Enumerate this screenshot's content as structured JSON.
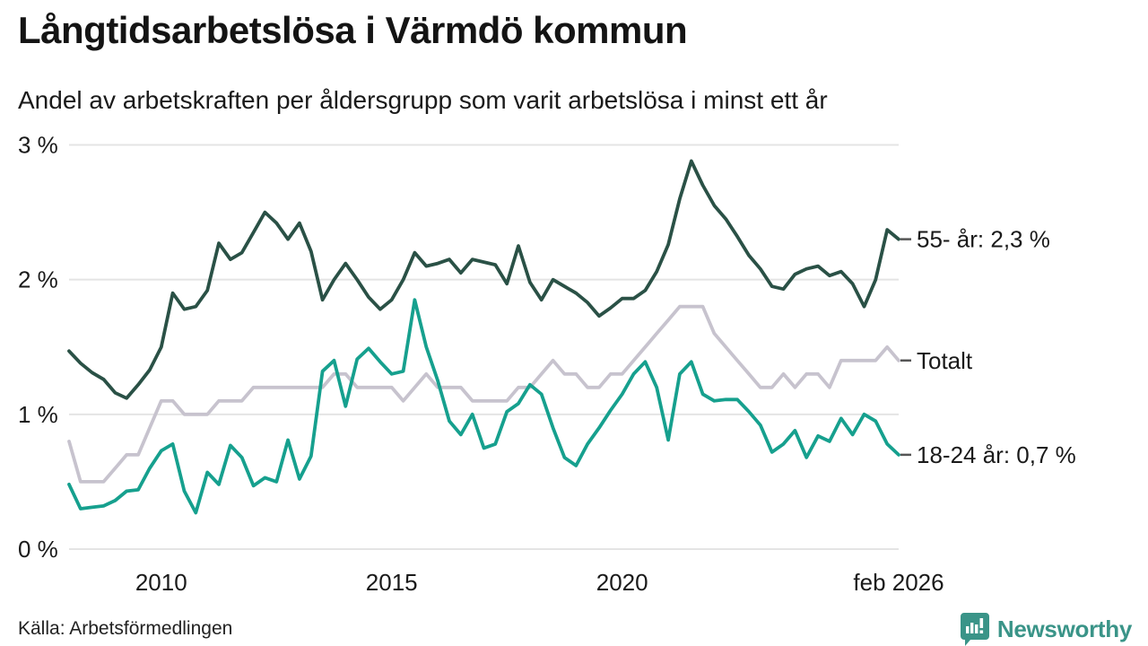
{
  "header": {
    "title": "Långtidsarbetslösa i Värmdö kommun",
    "subtitle": "Andel av arbetskraften per åldersgrupp som varit arbetslösa i minst ett år"
  },
  "footer": {
    "source": "Källa: Arbetsförmedlingen",
    "brand": "Newsworthy"
  },
  "colors": {
    "series_55": "#2a5146",
    "series_total": "#c7c3ce",
    "series_youth": "#16a08e",
    "grid": "#e4e4e4",
    "text": "#1a1a1a",
    "end_label_dash": "#555555",
    "brand": "#3a9488"
  },
  "chart_data": {
    "type": "line",
    "title": "Långtidsarbetslösa i Värmdö kommun",
    "subtitle": "Andel av arbetskraften per åldersgrupp som varit arbetslösa i minst ett år",
    "unit": "% av arbetskraften",
    "ylim": [
      0,
      3
    ],
    "grid": "horizontal",
    "legend_position": "right-end-labels",
    "x": [
      "2008-02",
      "2008-05",
      "2008-08",
      "2008-11",
      "2009-02",
      "2009-05",
      "2009-08",
      "2009-11",
      "2010-02",
      "2010-05",
      "2010-08",
      "2010-11",
      "2011-02",
      "2011-05",
      "2011-08",
      "2011-11",
      "2012-02",
      "2012-05",
      "2012-08",
      "2012-11",
      "2013-02",
      "2013-05",
      "2013-08",
      "2013-11",
      "2014-02",
      "2014-05",
      "2014-08",
      "2014-11",
      "2015-02",
      "2015-05",
      "2015-08",
      "2015-11",
      "2016-02",
      "2016-05",
      "2016-08",
      "2016-11",
      "2017-02",
      "2017-05",
      "2017-08",
      "2017-11",
      "2018-02",
      "2018-05",
      "2018-08",
      "2018-11",
      "2019-02",
      "2019-05",
      "2019-08",
      "2019-11",
      "2020-02",
      "2020-05",
      "2020-08",
      "2020-11",
      "2021-02",
      "2021-05",
      "2021-08",
      "2021-11",
      "2022-02",
      "2022-05",
      "2022-08",
      "2022-11",
      "2023-02",
      "2023-05",
      "2023-08",
      "2023-11",
      "2024-02",
      "2024-05",
      "2024-08",
      "2024-11",
      "2025-02",
      "2025-05",
      "2025-08",
      "2025-11",
      "2026-02"
    ],
    "series": [
      {
        "name": "55- år",
        "end_label": "55- år: 2,3 %",
        "end_value": 2.3,
        "color_key": "series_55",
        "values": [
          1.47,
          1.38,
          1.31,
          1.26,
          1.16,
          1.12,
          1.22,
          1.33,
          1.5,
          1.9,
          1.78,
          1.8,
          1.92,
          2.27,
          2.15,
          2.2,
          2.35,
          2.5,
          2.42,
          2.3,
          2.42,
          2.21,
          1.85,
          2.0,
          2.12,
          2.0,
          1.87,
          1.78,
          1.85,
          2.0,
          2.2,
          2.1,
          2.12,
          2.15,
          2.05,
          2.15,
          2.13,
          2.11,
          1.97,
          2.25,
          1.98,
          1.85,
          2.0,
          1.95,
          1.9,
          1.83,
          1.73,
          1.79,
          1.86,
          1.86,
          1.92,
          2.06,
          2.26,
          2.6,
          2.88,
          2.7,
          2.55,
          2.45,
          2.32,
          2.18,
          2.08,
          1.95,
          1.93,
          2.04,
          2.08,
          2.1,
          2.03,
          2.06,
          1.97,
          1.8,
          2.0,
          2.37,
          2.3
        ]
      },
      {
        "name": "Totalt",
        "end_label": "Totalt",
        "end_value": 1.4,
        "color_key": "series_total",
        "values": [
          0.8,
          0.5,
          0.5,
          0.5,
          0.6,
          0.7,
          0.7,
          0.9,
          1.1,
          1.1,
          1.0,
          1.0,
          1.0,
          1.1,
          1.1,
          1.1,
          1.2,
          1.2,
          1.2,
          1.2,
          1.2,
          1.2,
          1.2,
          1.3,
          1.3,
          1.2,
          1.2,
          1.2,
          1.2,
          1.1,
          1.2,
          1.3,
          1.2,
          1.2,
          1.2,
          1.1,
          1.1,
          1.1,
          1.1,
          1.2,
          1.2,
          1.3,
          1.4,
          1.3,
          1.3,
          1.2,
          1.2,
          1.3,
          1.3,
          1.4,
          1.5,
          1.6,
          1.7,
          1.8,
          1.8,
          1.8,
          1.6,
          1.5,
          1.4,
          1.3,
          1.2,
          1.2,
          1.3,
          1.2,
          1.3,
          1.3,
          1.2,
          1.4,
          1.4,
          1.4,
          1.4,
          1.5,
          1.4
        ]
      },
      {
        "name": "18-24 år",
        "end_label": "18-24 år: 0,7 %",
        "end_value": 0.7,
        "color_key": "series_youth",
        "values": [
          0.48,
          0.3,
          0.31,
          0.32,
          0.36,
          0.43,
          0.44,
          0.6,
          0.73,
          0.78,
          0.43,
          0.27,
          0.57,
          0.48,
          0.77,
          0.68,
          0.47,
          0.53,
          0.5,
          0.81,
          0.52,
          0.69,
          1.32,
          1.4,
          1.06,
          1.41,
          1.49,
          1.39,
          1.3,
          1.32,
          1.85,
          1.5,
          1.25,
          0.95,
          0.85,
          1.0,
          0.75,
          0.78,
          1.02,
          1.08,
          1.22,
          1.15,
          0.9,
          0.68,
          0.62,
          0.78,
          0.9,
          1.03,
          1.15,
          1.3,
          1.39,
          1.2,
          0.81,
          1.3,
          1.39,
          1.15,
          1.1,
          1.11,
          1.11,
          1.02,
          0.92,
          0.72,
          0.78,
          0.88,
          0.68,
          0.84,
          0.8,
          0.97,
          0.85,
          1.0,
          0.95,
          0.78,
          0.7
        ]
      }
    ],
    "yticks": [
      {
        "v": 0,
        "label": "0 %"
      },
      {
        "v": 1,
        "label": "1 %"
      },
      {
        "v": 2,
        "label": "2 %"
      },
      {
        "v": 3,
        "label": "3 %"
      }
    ],
    "xticks": [
      {
        "t": "2010-02",
        "label": "2010"
      },
      {
        "t": "2015-02",
        "label": "2015"
      },
      {
        "t": "2020-02",
        "label": "2020"
      },
      {
        "t": "2026-02",
        "label": "feb 2026"
      }
    ]
  }
}
